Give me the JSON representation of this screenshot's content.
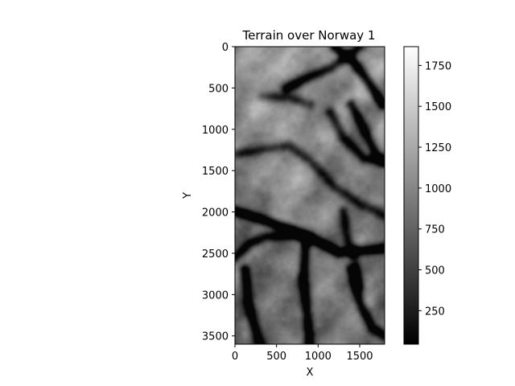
{
  "chart_data": {
    "type": "heatmap",
    "title": "Terrain over Norway 1",
    "xlabel": "X",
    "ylabel": "Y",
    "colormap": "gray",
    "xlim": [
      0,
      1800
    ],
    "ylim": [
      3600,
      0
    ],
    "x_ticks": [
      0,
      500,
      1000,
      1500
    ],
    "y_ticks": [
      0,
      500,
      1000,
      1500,
      2000,
      2500,
      3000,
      3500
    ],
    "colorbar": {
      "range": [
        45,
        1865
      ],
      "ticks": [
        250,
        500,
        750,
        1000,
        1250,
        1500,
        1750
      ]
    },
    "valleys": [
      {
        "points": [
          [
            0,
            1990
          ],
          [
            300,
            2080
          ],
          [
            700,
            2230
          ],
          [
            1000,
            2360
          ],
          [
            1250,
            2490
          ],
          [
            1500,
            2470
          ],
          [
            1800,
            2440
          ]
        ],
        "depth": 0.7
      },
      {
        "points": [
          [
            0,
            2550
          ],
          [
            180,
            2380
          ],
          [
            380,
            2300
          ],
          [
            700,
            2280
          ],
          [
            900,
            2310
          ]
        ],
        "depth": 0.5
      },
      {
        "points": [
          [
            1200,
            0
          ],
          [
            1420,
            180
          ],
          [
            1600,
            420
          ],
          [
            1780,
            700
          ]
        ],
        "depth": 0.65
      },
      {
        "points": [
          [
            620,
            500
          ],
          [
            900,
            360
          ],
          [
            1150,
            260
          ],
          [
            1350,
            120
          ],
          [
            1500,
            0
          ]
        ],
        "depth": 0.55
      },
      {
        "points": [
          [
            1400,
            700
          ],
          [
            1550,
            1000
          ],
          [
            1700,
            1300
          ],
          [
            1800,
            1380
          ]
        ],
        "depth": 0.55
      },
      {
        "points": [
          [
            0,
            1300
          ],
          [
            300,
            1250
          ],
          [
            650,
            1200
          ],
          [
            900,
            1380
          ],
          [
            1200,
            1700
          ],
          [
            1500,
            1900
          ],
          [
            1800,
            2050
          ]
        ],
        "depth": 0.4
      },
      {
        "points": [
          [
            850,
            2400
          ],
          [
            820,
            2800
          ],
          [
            860,
            3150
          ],
          [
            900,
            3600
          ]
        ],
        "depth": 0.6
      },
      {
        "points": [
          [
            120,
            2700
          ],
          [
            160,
            3100
          ],
          [
            240,
            3400
          ],
          [
            300,
            3600
          ]
        ],
        "depth": 0.55
      },
      {
        "points": [
          [
            1400,
            2700
          ],
          [
            1500,
            3100
          ],
          [
            1650,
            3400
          ],
          [
            1800,
            3500
          ]
        ],
        "depth": 0.6
      },
      {
        "points": [
          [
            1150,
            800
          ],
          [
            1300,
            1100
          ],
          [
            1550,
            1350
          ],
          [
            1800,
            1400
          ]
        ],
        "depth": 0.45
      },
      {
        "points": [
          [
            350,
            600
          ],
          [
            650,
            620
          ],
          [
            900,
            700
          ]
        ],
        "depth": 0.35
      },
      {
        "points": [
          [
            1300,
            2000
          ],
          [
            1350,
            2300
          ],
          [
            1450,
            2600
          ],
          [
            1500,
            2900
          ]
        ],
        "depth": 0.4
      }
    ]
  }
}
